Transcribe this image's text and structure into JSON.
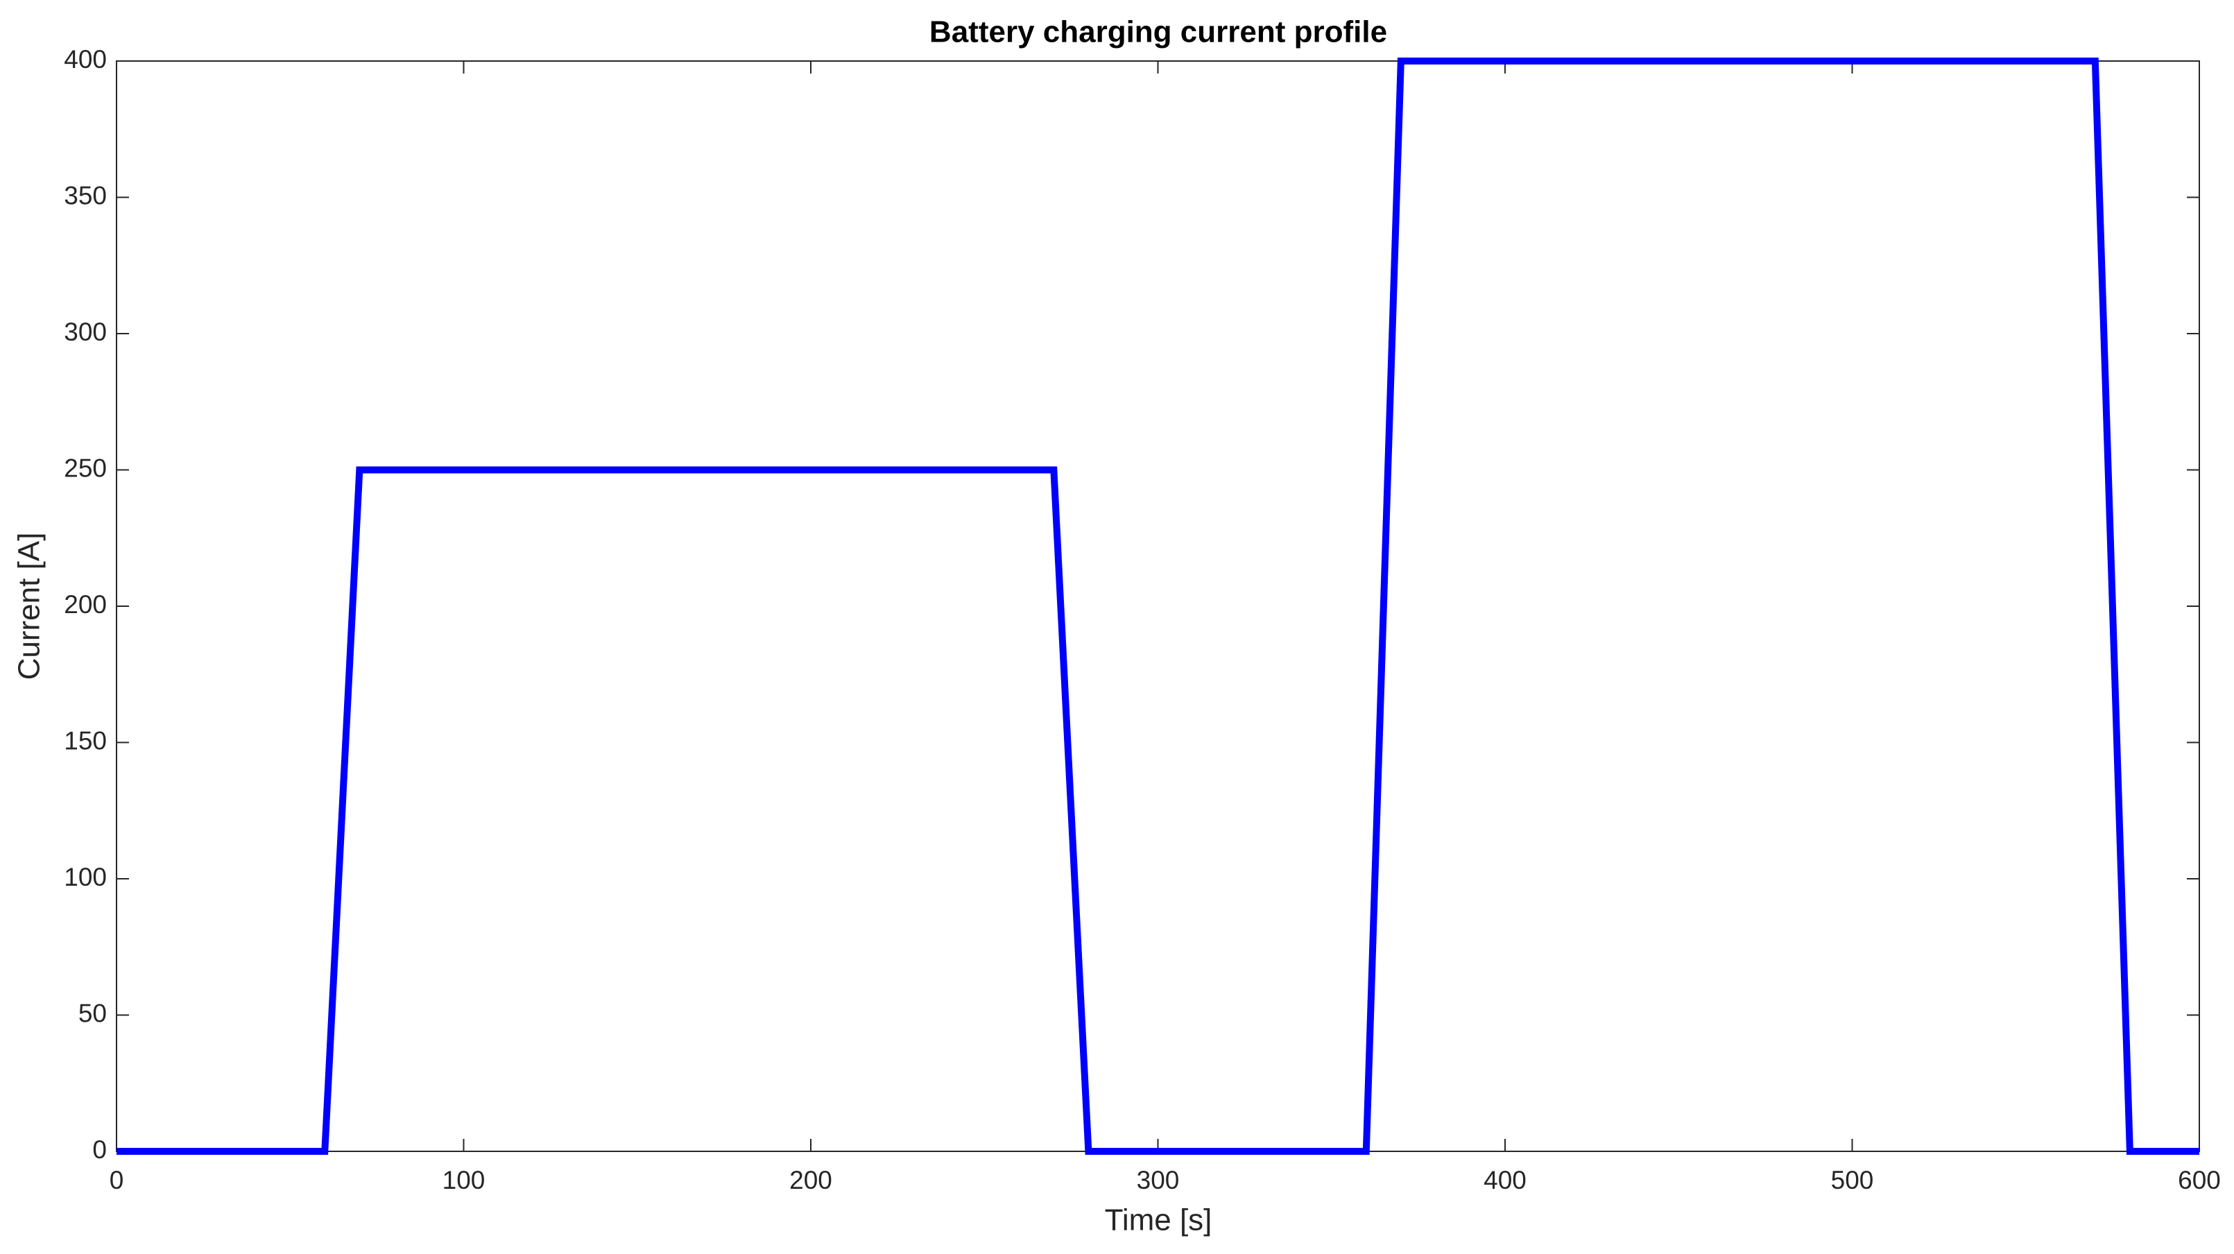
{
  "chart_data": {
    "type": "line",
    "title": "Battery charging current profile",
    "x_label": "Time [s]",
    "y_label": "Current [A]",
    "x": [
      0,
      60,
      70,
      270,
      280,
      360,
      370,
      570,
      580,
      600
    ],
    "series": [
      {
        "name": "Current",
        "color": "#0000ff",
        "values": [
          0,
          0,
          250,
          250,
          0,
          0,
          400,
          400,
          0,
          0
        ]
      }
    ],
    "xlim": [
      0,
      600
    ],
    "xticks": [
      0,
      100,
      200,
      300,
      400,
      500,
      600
    ],
    "ylim": [
      0,
      400
    ],
    "yticks": [
      0,
      50,
      100,
      150,
      200,
      250,
      300,
      350,
      400
    ],
    "grid": false
  }
}
